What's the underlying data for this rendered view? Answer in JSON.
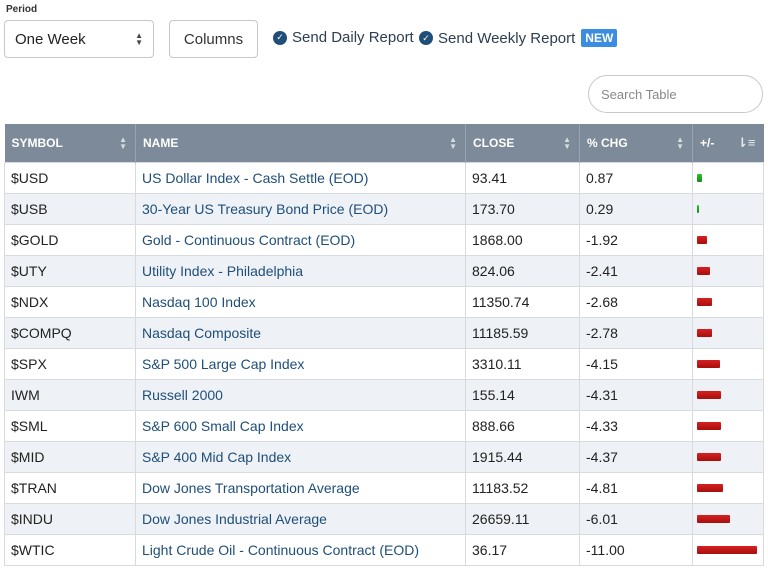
{
  "filters": {
    "period_label": "Period",
    "period_value": "One Week",
    "columns_label": "Columns",
    "daily_report_label": "Send Daily Report",
    "weekly_report_label": "Send Weekly Report",
    "new_badge": "NEW"
  },
  "search": {
    "placeholder": "Search Table"
  },
  "table": {
    "headers": {
      "symbol": "SYMBOL",
      "name": "NAME",
      "close": "CLOSE",
      "chg": "% CHG",
      "bar": "+/-"
    },
    "rows": [
      {
        "symbol": "$USD",
        "name": "US Dollar Index - Cash Settle (EOD)",
        "close": "93.41",
        "chg": "0.87",
        "chg_value": 0.87
      },
      {
        "symbol": "$USB",
        "name": "30-Year US Treasury Bond Price (EOD)",
        "close": "173.70",
        "chg": "0.29",
        "chg_value": 0.29
      },
      {
        "symbol": "$GOLD",
        "name": "Gold - Continuous Contract (EOD)",
        "close": "1868.00",
        "chg": "-1.92",
        "chg_value": -1.92
      },
      {
        "symbol": "$UTY",
        "name": "Utility Index - Philadelphia",
        "close": "824.06",
        "chg": "-2.41",
        "chg_value": -2.41
      },
      {
        "symbol": "$NDX",
        "name": "Nasdaq 100 Index",
        "close": "11350.74",
        "chg": "-2.68",
        "chg_value": -2.68
      },
      {
        "symbol": "$COMPQ",
        "name": "Nasdaq Composite",
        "close": "11185.59",
        "chg": "-2.78",
        "chg_value": -2.78
      },
      {
        "symbol": "$SPX",
        "name": "S&P 500 Large Cap Index",
        "close": "3310.11",
        "chg": "-4.15",
        "chg_value": -4.15
      },
      {
        "symbol": "IWM",
        "name": "Russell 2000",
        "close": "155.14",
        "chg": "-4.31",
        "chg_value": -4.31
      },
      {
        "symbol": "$SML",
        "name": "S&P 600 Small Cap Index",
        "close": "888.66",
        "chg": "-4.33",
        "chg_value": -4.33
      },
      {
        "symbol": "$MID",
        "name": "S&P 400 Mid Cap Index",
        "close": "1915.44",
        "chg": "-4.37",
        "chg_value": -4.37
      },
      {
        "symbol": "$TRAN",
        "name": "Dow Jones Transportation Average",
        "close": "11183.52",
        "chg": "-4.81",
        "chg_value": -4.81
      },
      {
        "symbol": "$INDU",
        "name": "Dow Jones Industrial Average",
        "close": "26659.11",
        "chg": "-6.01",
        "chg_value": -6.01
      },
      {
        "symbol": "$WTIC",
        "name": "Light Crude Oil - Continuous Contract (EOD)",
        "close": "36.17",
        "chg": "-11.00",
        "chg_value": -11.0
      }
    ]
  },
  "colors": {
    "header_bg": "#7d8a99",
    "negative": "#c81818",
    "positive": "#22aa22",
    "link": "#1f4e79",
    "badge": "#3a8de0"
  }
}
